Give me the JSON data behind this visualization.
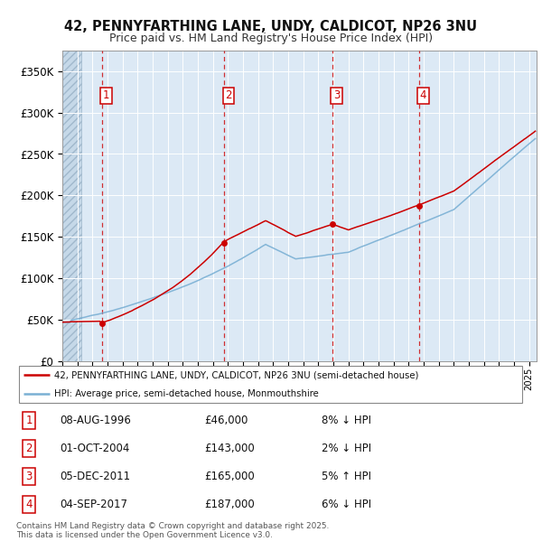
{
  "title_line1": "42, PENNYFARTHING LANE, UNDY, CALDICOT, NP26 3NU",
  "title_line2": "Price paid vs. HM Land Registry's House Price Index (HPI)",
  "background_color": "#dce9f5",
  "red_line_color": "#cc0000",
  "blue_line_color": "#7ab0d4",
  "purchase_dates_year": [
    1996.614,
    2004.748,
    2011.922,
    2017.671
  ],
  "purchase_prices": [
    46000,
    143000,
    165000,
    187000
  ],
  "purchase_labels": [
    "1",
    "2",
    "3",
    "4"
  ],
  "purchase_info": [
    {
      "label": "1",
      "date": "08-AUG-1996",
      "price": "£46,000",
      "hpi": "8% ↓ HPI"
    },
    {
      "label": "2",
      "date": "01-OCT-2004",
      "price": "£143,000",
      "hpi": "2% ↓ HPI"
    },
    {
      "label": "3",
      "date": "05-DEC-2011",
      "price": "£165,000",
      "hpi": "5% ↑ HPI"
    },
    {
      "label": "4",
      "date": "04-SEP-2017",
      "price": "£187,000",
      "hpi": "6% ↓ HPI"
    }
  ],
  "legend_line1": "42, PENNYFARTHING LANE, UNDY, CALDICOT, NP26 3NU (semi-detached house)",
  "legend_line2": "HPI: Average price, semi-detached house, Monmouthshire",
  "footer": "Contains HM Land Registry data © Crown copyright and database right 2025.\nThis data is licensed under the Open Government Licence v3.0.",
  "ylim": [
    0,
    375000
  ],
  "yticks": [
    0,
    50000,
    100000,
    150000,
    200000,
    250000,
    300000,
    350000
  ],
  "xstart": 1994,
  "xend": 2025.5
}
